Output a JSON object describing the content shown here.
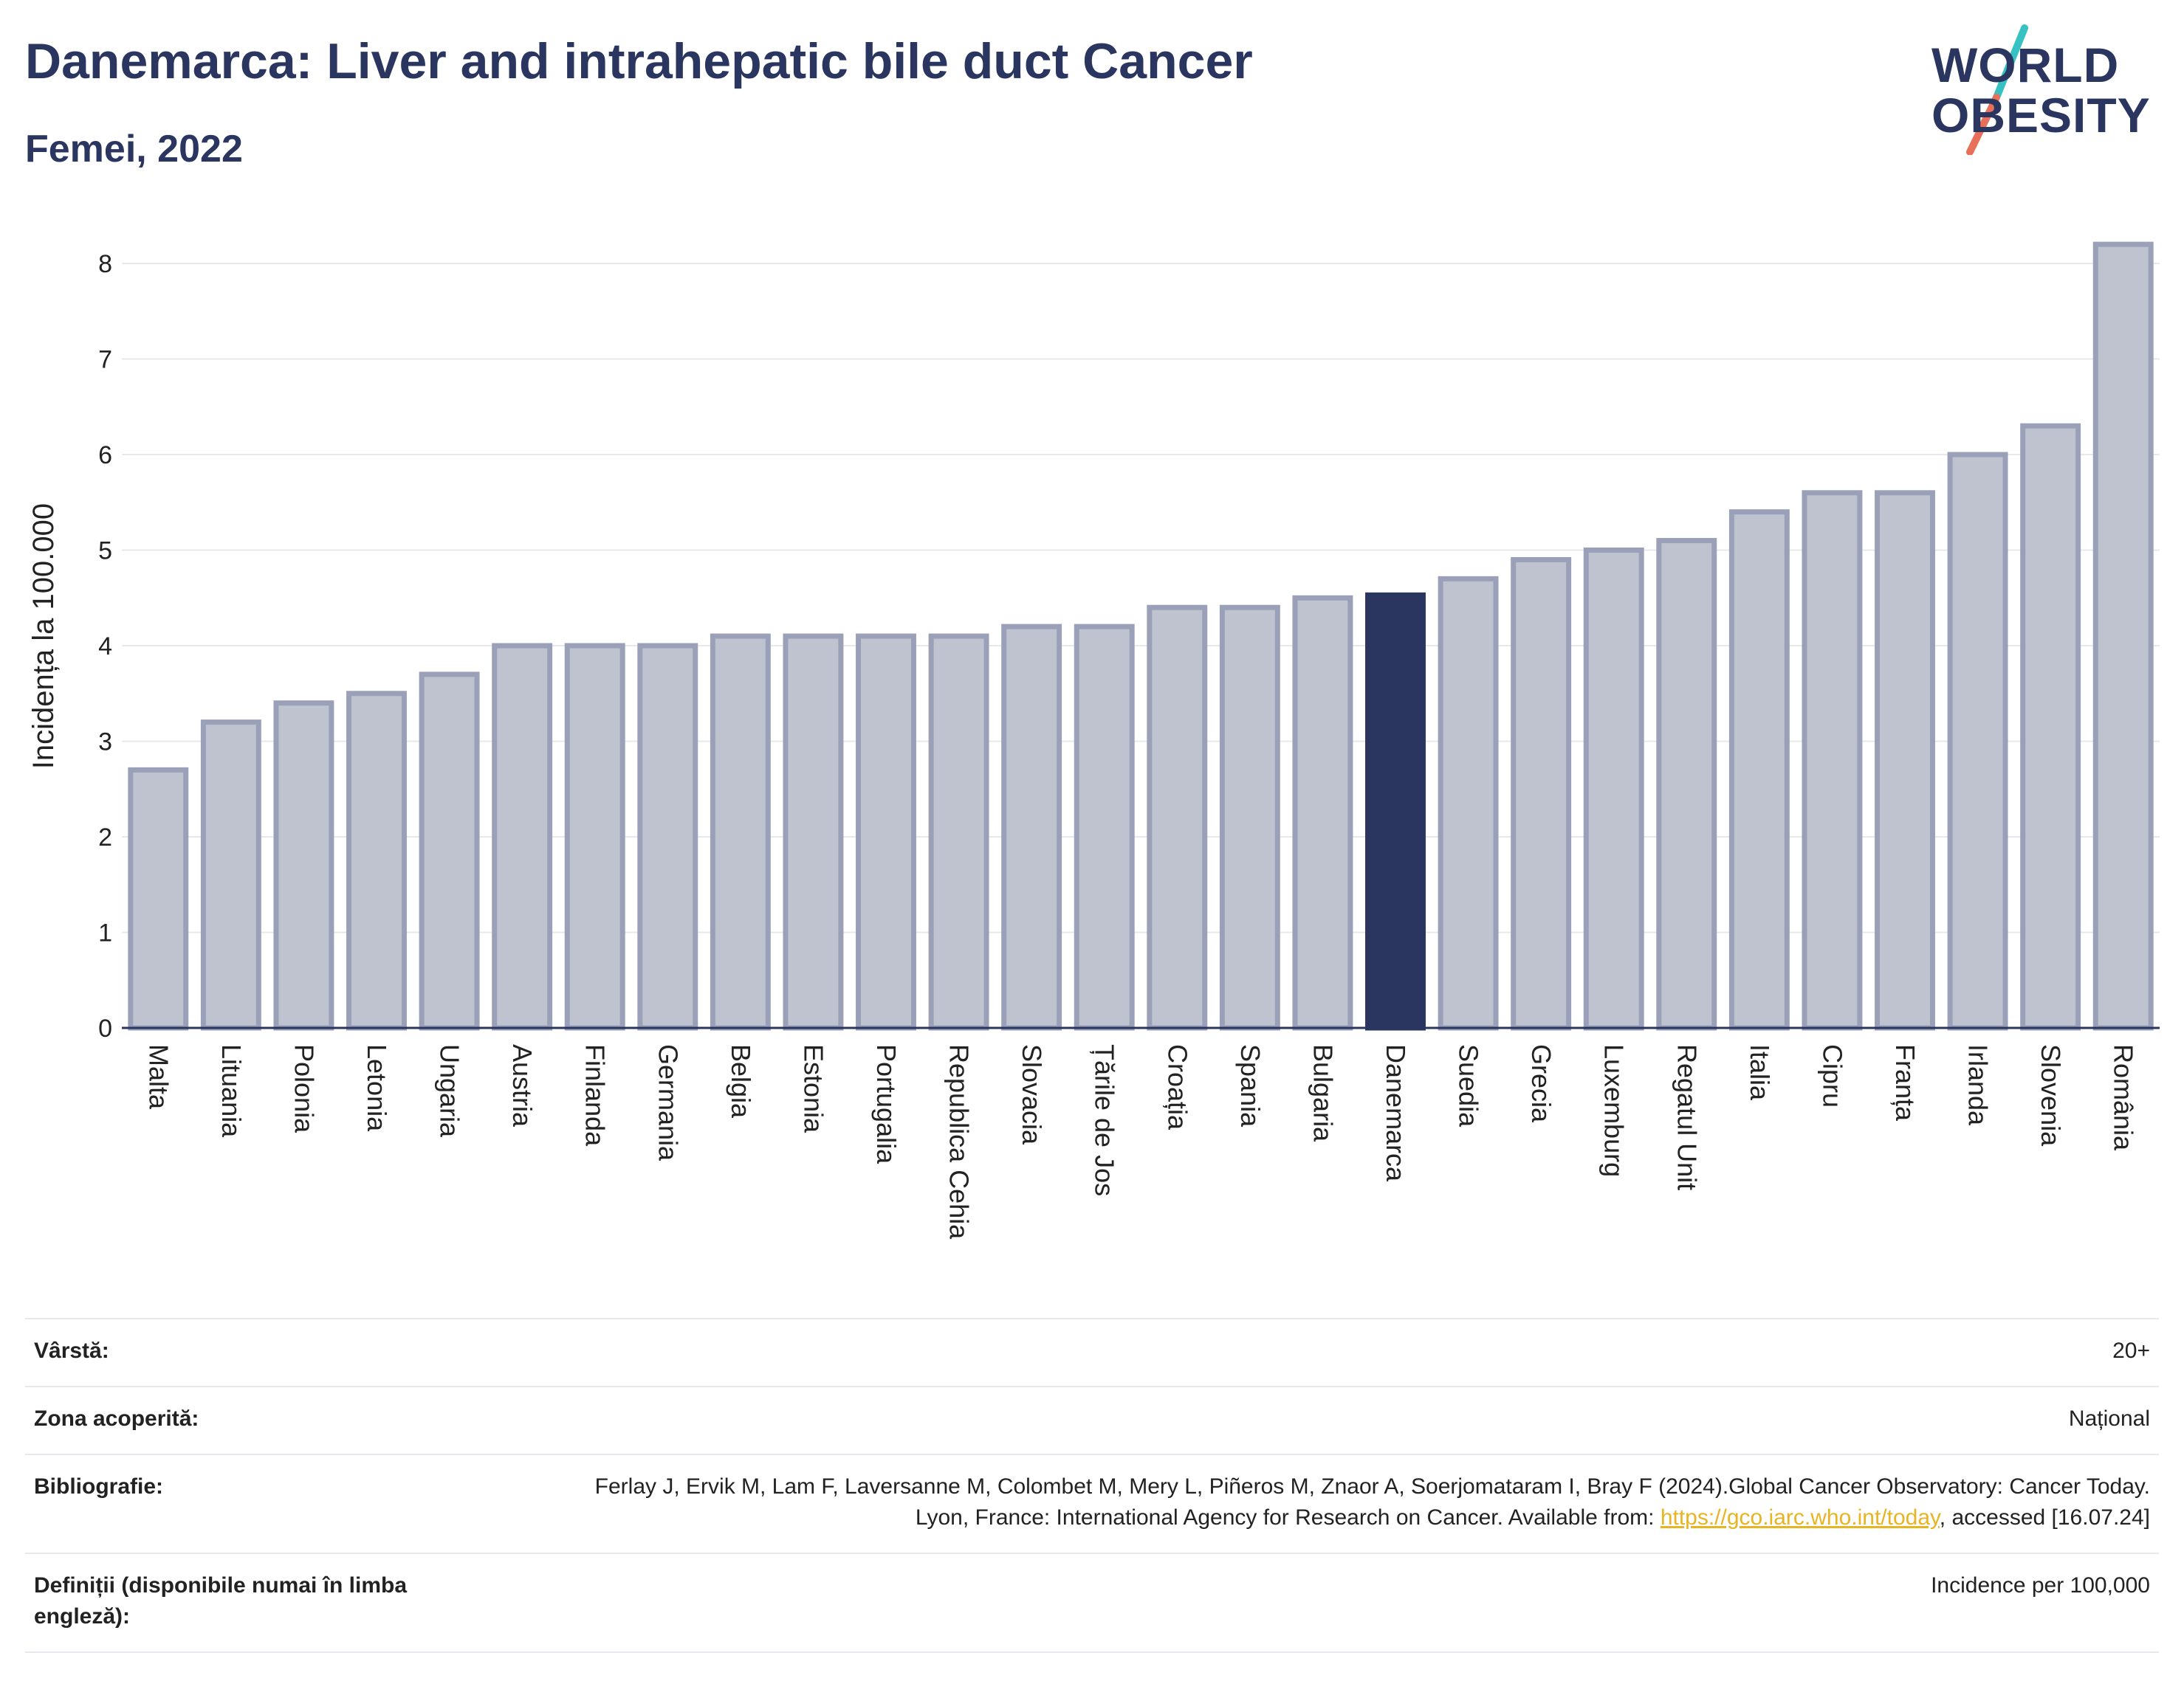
{
  "header": {
    "title": "Danemarca: Liver and intrahepatic bile duct Cancer",
    "subtitle": "Femei, 2022"
  },
  "logo": {
    "line1": "WORLD",
    "line2": "OBESITY",
    "slash_colors": [
      "#36c2c2",
      "#e8705a"
    ]
  },
  "colors": {
    "bar": "#bfc3d0",
    "bar_edge": "#9aa0b8",
    "highlight": "#2a3560",
    "grid": "#e6e8ee",
    "axis": "#2a3560",
    "text": "#2a3560",
    "link": "#e8b422"
  },
  "chart_data": {
    "type": "bar",
    "ylabel": "Incidența la 100.000",
    "xlabel": "",
    "ylim": [
      0,
      8.4
    ],
    "yticks": [
      0,
      1,
      2,
      3,
      4,
      5,
      6,
      7,
      8
    ],
    "grid": true,
    "highlight": "Danemarca",
    "categories": [
      "Malta",
      "Lituania",
      "Polonia",
      "Letonia",
      "Ungaria",
      "Austria",
      "Finlanda",
      "Germania",
      "Belgia",
      "Estonia",
      "Portugalia",
      "Republica Cehia",
      "Slovacia",
      "Țările de Jos",
      "Croația",
      "Spania",
      "Bulgaria",
      "Danemarca",
      "Suedia",
      "Grecia",
      "Luxemburg",
      "Regatul Unit",
      "Italia",
      "Cipru",
      "Franța",
      "Irlanda",
      "Slovenia",
      "România"
    ],
    "values": [
      2.7,
      3.2,
      3.4,
      3.5,
      3.7,
      4.0,
      4.0,
      4.0,
      4.1,
      4.1,
      4.1,
      4.1,
      4.2,
      4.2,
      4.4,
      4.4,
      4.5,
      4.53,
      4.7,
      4.9,
      5.0,
      5.1,
      5.4,
      5.6,
      5.6,
      6.0,
      6.3,
      8.2
    ]
  },
  "meta": {
    "rows": [
      {
        "label": "Vârstă:",
        "value": "20+"
      },
      {
        "label": "Zona acoperită:",
        "value": "Național"
      },
      {
        "label": "Bibliografie:",
        "value": "Ferlay J, Ervik M, Lam F, Laversanne M, Colombet M, Mery L, Piñeros M, Znaor A, Soerjomataram I, Bray F (2024).Global Cancer Observatory: Cancer Today. Lyon, France: International Agency for Research on Cancer. Available from: ",
        "link": "https://gco.iarc.who.int/today",
        "suffix": ", accessed [16.07.24]"
      },
      {
        "label": "Definiții (disponibile numai în limba engleză):",
        "value": "Incidence per 100,000"
      }
    ]
  }
}
